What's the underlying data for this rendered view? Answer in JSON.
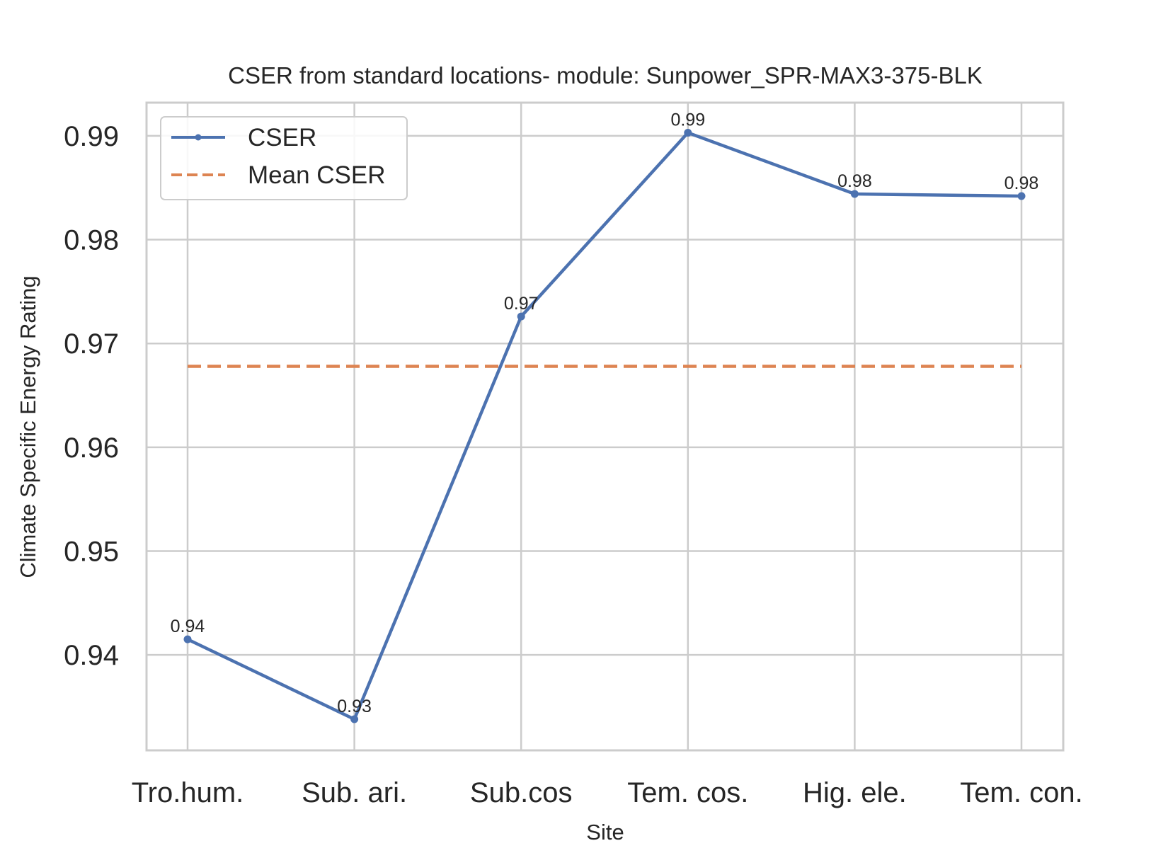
{
  "chart_data": {
    "type": "line",
    "title": "CSER from standard locations- module: Sunpower_SPR-MAX3-375-BLK",
    "xlabel": "Site",
    "ylabel": "Climate Specific Energy Rating",
    "categories": [
      "Tro.hum.",
      "Sub. ari.",
      "Sub.cos",
      "Tem. cos.",
      "Hig. ele.",
      "Tem. con."
    ],
    "series": [
      {
        "name": "CSER",
        "values": [
          0.9415,
          0.9338,
          0.9726,
          0.9903,
          0.9844,
          0.9842
        ],
        "data_labels": [
          "0.94",
          "0.93",
          "0.97",
          "0.99",
          "0.98",
          "0.98"
        ],
        "color": "#4c72b0",
        "style": "solid",
        "marker": "circle"
      },
      {
        "name": "Mean CSER",
        "values": [
          0.9678,
          0.9678,
          0.9678,
          0.9678,
          0.9678,
          0.9678
        ],
        "color": "#dd8452",
        "style": "dashed"
      }
    ],
    "ylim": [
      0.9308,
      0.9932
    ],
    "yticks": [
      0.94,
      0.95,
      0.96,
      0.97,
      0.98,
      0.99
    ],
    "ytick_labels": [
      "0.94",
      "0.95",
      "0.96",
      "0.97",
      "0.98",
      "0.99"
    ],
    "grid": true,
    "legend_position": "upper left"
  }
}
